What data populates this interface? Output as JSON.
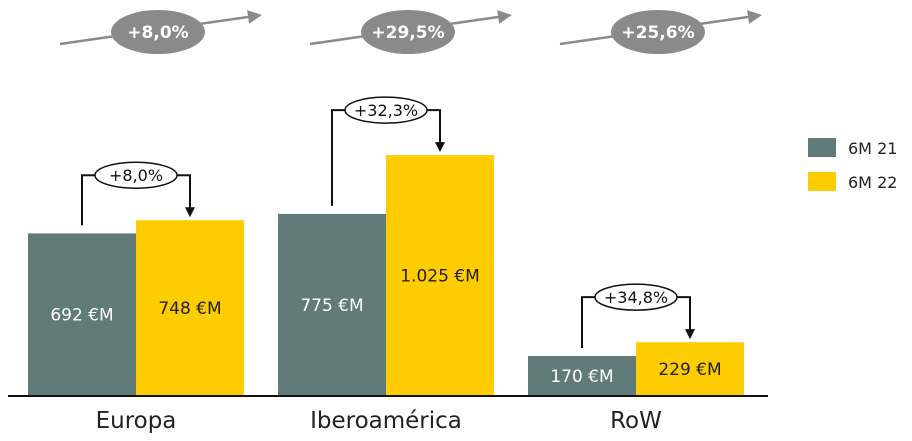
{
  "chart_data": {
    "type": "bar",
    "categories": [
      "Europa",
      "Iberoamérica",
      "RoW"
    ],
    "series": [
      {
        "name": "6M 21",
        "values": [
          692,
          775,
          170
        ],
        "labels": [
          "692 €M",
          "775 €M",
          "170 €M"
        ],
        "color": "#617a7a",
        "label_color": "#ffffff"
      },
      {
        "name": "6M 22",
        "values": [
          748,
          1025,
          229
        ],
        "labels": [
          "748 €M",
          "1.025 €M",
          "229 €M"
        ],
        "color": "#ffcc00",
        "label_color": "#222222"
      }
    ],
    "growth_labels": [
      "+8,0%",
      "+32,3%",
      "+34,8%"
    ],
    "top_badges": [
      "+8,0%",
      "+29,5%",
      "+25,6%"
    ],
    "badge_color": "#8a8a8a",
    "ylim": [
      0,
      1200
    ],
    "legend_position": "right",
    "grid": false
  }
}
